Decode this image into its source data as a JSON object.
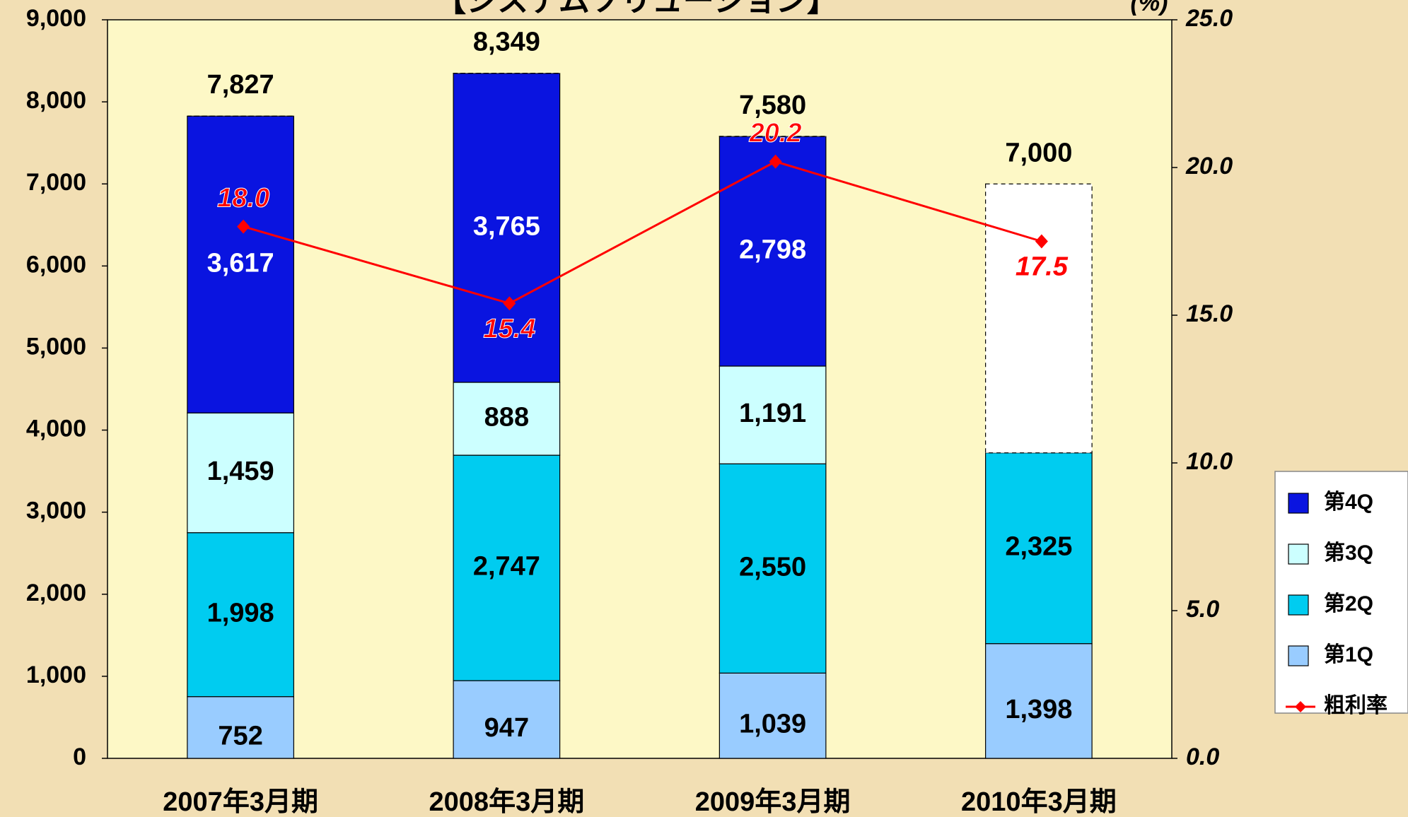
{
  "chart_data": {
    "type": "bar",
    "title": "【システムソリューション】",
    "y2_unit": "(%)",
    "categories": [
      "2007年3月期",
      "2008年3月期",
      "2009年3月期",
      "2010年3月期"
    ],
    "ylim": [
      0,
      9000
    ],
    "yticks": [
      0,
      {
        "value": 1000,
        "label": "1,000"
      },
      {
        "value": 2000,
        "label": "2,000"
      },
      {
        "value": 3000,
        "label": "3,000"
      },
      {
        "value": 4000,
        "label": "4,000"
      },
      {
        "value": 5000,
        "label": "5,000"
      },
      {
        "value": 6000,
        "label": "6,000"
      },
      {
        "value": 7000,
        "label": "7,000"
      },
      {
        "value": 8000,
        "label": "8,000"
      },
      {
        "value": 9000,
        "label": "9,000"
      }
    ],
    "y2lim": [
      0,
      25
    ],
    "y2ticks": [
      {
        "value": 0,
        "label": "0.0"
      },
      {
        "value": 5,
        "label": "5.0"
      },
      {
        "value": 10,
        "label": "10.0"
      },
      {
        "value": 15,
        "label": "15.0"
      },
      {
        "value": 20,
        "label": "20.0"
      },
      {
        "value": 25,
        "label": "25.0"
      }
    ],
    "stacked": true,
    "series": [
      {
        "name": "第1Q",
        "color": "#99ccff",
        "values": [
          752,
          947,
          1039,
          1398
        ],
        "value_labels": [
          "752",
          "947",
          "1,039",
          "1,398"
        ]
      },
      {
        "name": "第2Q",
        "color": "#00ccf0",
        "values": [
          1998,
          2747,
          2550,
          2325
        ],
        "value_labels": [
          "1,998",
          "2,747",
          "2,550",
          "2,325"
        ]
      },
      {
        "name": "第3Q",
        "color": "#ccffff",
        "values": [
          1459,
          888,
          1191,
          null
        ],
        "value_labels": [
          "1,459",
          "888",
          "1,191",
          null
        ]
      },
      {
        "name": "第4Q",
        "color": "#0a14e0",
        "values": [
          3617,
          3765,
          2798,
          null
        ],
        "value_labels": [
          "3,617",
          "3,765",
          "2,798",
          null
        ]
      },
      {
        "name": "粗利率",
        "type": "line",
        "axis": "y2",
        "color": "#ff0000",
        "values": [
          18.0,
          15.4,
          20.2,
          17.5
        ],
        "value_labels": [
          "18.0",
          "15.4",
          "20.2",
          "17.5"
        ]
      }
    ],
    "totals": {
      "values": [
        7827,
        8349,
        7580,
        7000
      ],
      "value_labels": [
        "7,827",
        "8,349",
        "7,580",
        "7,000"
      ]
    }
  }
}
